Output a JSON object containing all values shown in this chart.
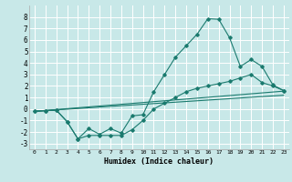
{
  "xlabel": "Humidex (Indice chaleur)",
  "bg_color": "#c8e8e8",
  "grid_color": "#ffffff",
  "line_color": "#1a7a6e",
  "xlim": [
    -0.5,
    23.5
  ],
  "ylim": [
    -3.5,
    9.0
  ],
  "xticks": [
    0,
    1,
    2,
    3,
    4,
    5,
    6,
    7,
    8,
    9,
    10,
    11,
    12,
    13,
    14,
    15,
    16,
    17,
    18,
    19,
    20,
    21,
    22,
    23
  ],
  "yticks": [
    -3,
    -2,
    -1,
    0,
    1,
    2,
    3,
    4,
    5,
    6,
    7,
    8
  ],
  "series1_x": [
    0,
    1,
    2,
    3,
    4,
    5,
    6,
    7,
    8,
    9,
    10,
    11,
    12,
    13,
    14,
    15,
    16,
    17,
    18,
    19,
    20,
    21,
    22,
    23
  ],
  "series1_y": [
    -0.2,
    -0.15,
    -0.1,
    -1.1,
    -2.6,
    -1.7,
    -2.2,
    -1.7,
    -2.1,
    -0.6,
    -0.5,
    1.5,
    3.0,
    4.5,
    5.5,
    6.5,
    7.85,
    7.8,
    6.2,
    3.7,
    4.3,
    3.7,
    2.1,
    1.6
  ],
  "series2_x": [
    0,
    1,
    2,
    3,
    4,
    5,
    6,
    7,
    8,
    9,
    10,
    11,
    12,
    13,
    14,
    15,
    16,
    17,
    18,
    19,
    20,
    21,
    22,
    23
  ],
  "series2_y": [
    -0.2,
    -0.15,
    -0.1,
    -1.1,
    -2.6,
    -2.3,
    -2.3,
    -2.3,
    -2.3,
    -1.8,
    -1.0,
    0.0,
    0.5,
    1.0,
    1.5,
    1.8,
    2.0,
    2.2,
    2.4,
    2.7,
    3.0,
    2.3,
    2.0,
    1.6
  ],
  "series3_x": [
    0,
    23
  ],
  "series3_y": [
    -0.2,
    1.55
  ],
  "series4_x": [
    0,
    23
  ],
  "series4_y": [
    -0.2,
    1.2
  ]
}
